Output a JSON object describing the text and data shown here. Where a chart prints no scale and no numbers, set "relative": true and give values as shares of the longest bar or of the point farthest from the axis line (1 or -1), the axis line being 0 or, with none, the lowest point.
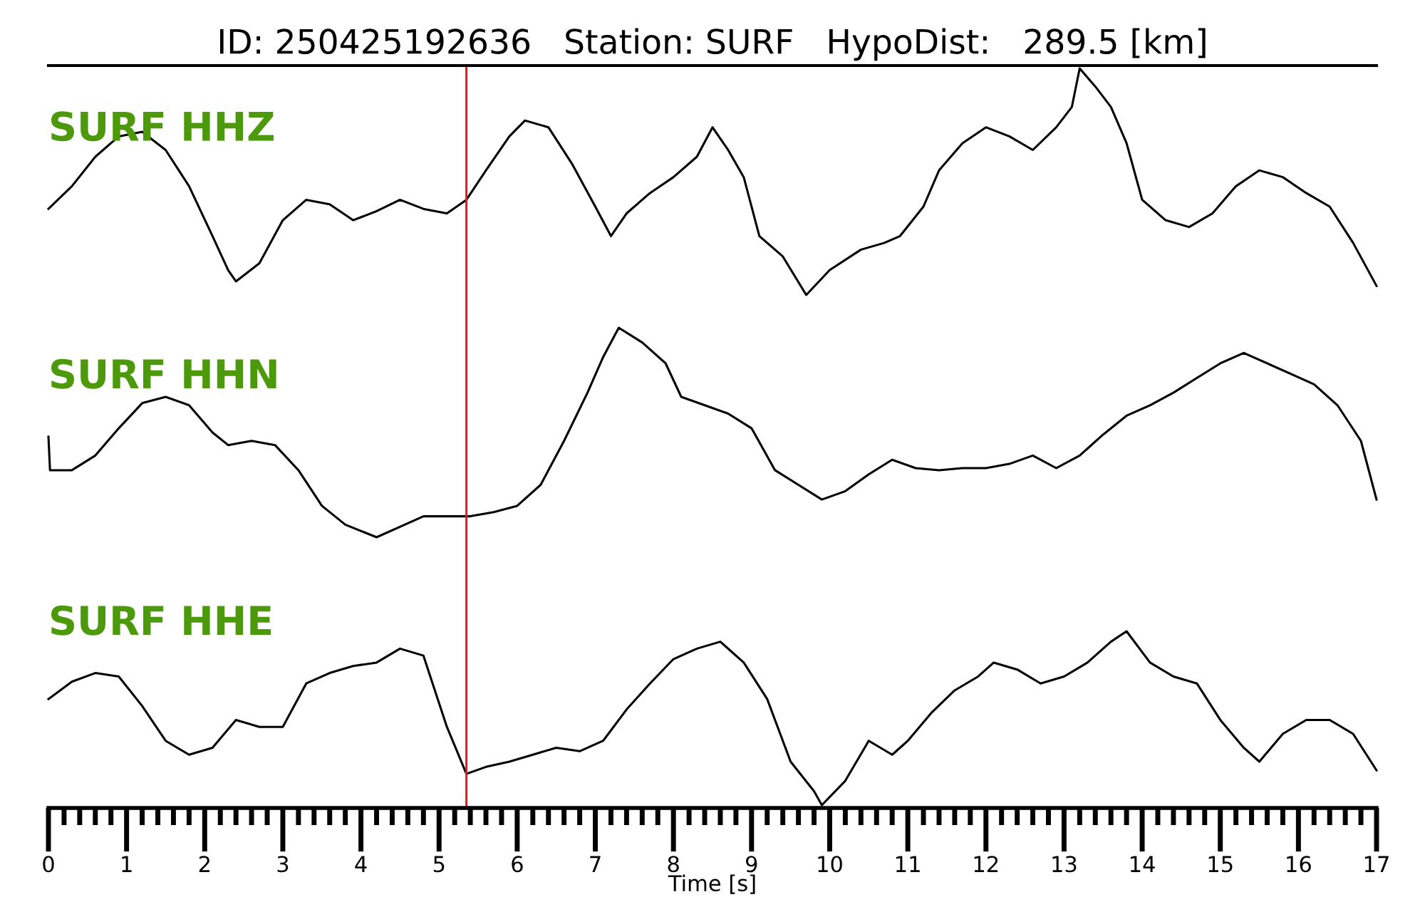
{
  "chart_data": [
    {
      "type": "line",
      "title": "ID: 250425192636   Station: SURF   HypoDist:   289.5 [km]",
      "relative": true,
      "xlim": [
        0,
        17
      ],
      "tick_labels": false,
      "annotations": [
        "SURF HHZ"
      ],
      "ref_lines": [
        {
          "axis": "x",
          "value": 5.35,
          "color": "#e41a1c"
        }
      ],
      "series": [
        {
          "color": "#000000",
          "x": [
            0,
            0.3,
            0.6,
            0.9,
            1.2,
            1.5,
            1.8,
            2.1,
            2.3,
            2.4,
            2.7,
            3.0,
            3.3,
            3.6,
            3.9,
            4.2,
            4.5,
            4.8,
            5.1,
            5.35,
            5.6,
            5.9,
            6.1,
            6.4,
            6.7,
            7.0,
            7.2,
            7.4,
            7.7,
            8.0,
            8.3,
            8.5,
            8.7,
            8.9,
            9.1,
            9.4,
            9.7,
            10.0,
            10.4,
            10.7,
            10.9,
            11.2,
            11.4,
            11.7,
            12.0,
            12.3,
            12.6,
            12.9,
            13.1,
            13.2,
            13.4,
            13.6,
            13.8,
            14.0,
            14.3,
            14.6,
            14.9,
            15.2,
            15.5,
            15.8,
            16.1,
            16.4,
            16.7,
            17.0
          ],
          "values": [
            0.38,
            0.48,
            0.61,
            0.7,
            0.72,
            0.64,
            0.48,
            0.26,
            0.11,
            0.06,
            0.14,
            0.33,
            0.42,
            0.4,
            0.33,
            0.37,
            0.42,
            0.38,
            0.36,
            0.42,
            0.55,
            0.7,
            0.77,
            0.74,
            0.58,
            0.39,
            0.26,
            0.36,
            0.45,
            0.52,
            0.61,
            0.74,
            0.64,
            0.52,
            0.26,
            0.17,
            0,
            0.11,
            0.2,
            0.23,
            0.26,
            0.39,
            0.55,
            0.67,
            0.74,
            0.7,
            0.64,
            0.74,
            0.83,
            1,
            0.92,
            0.83,
            0.67,
            0.42,
            0.33,
            0.3,
            0.36,
            0.48,
            0.55,
            0.52,
            0.45,
            0.39,
            0.23,
            0.04
          ]
        }
      ]
    },
    {
      "type": "line",
      "relative": true,
      "xlim": [
        0,
        17
      ],
      "tick_labels": false,
      "annotations": [
        "SURF HHN"
      ],
      "ref_lines": [
        {
          "axis": "x",
          "value": 5.35,
          "color": "#e41a1c"
        }
      ],
      "series": [
        {
          "color": "#000000",
          "x": [
            0,
            0.02,
            0.3,
            0.6,
            0.9,
            1.2,
            1.5,
            1.8,
            2.1,
            2.3,
            2.6,
            2.9,
            3.2,
            3.5,
            3.8,
            4.2,
            4.5,
            4.8,
            5.1,
            5.4,
            5.7,
            6.0,
            6.3,
            6.6,
            6.9,
            7.1,
            7.3,
            7.6,
            7.9,
            8.1,
            8.4,
            8.7,
            9.0,
            9.3,
            9.6,
            9.9,
            10.2,
            10.5,
            10.8,
            11.1,
            11.4,
            11.7,
            12.0,
            12.3,
            12.6,
            12.9,
            13.2,
            13.5,
            13.8,
            14.1,
            14.4,
            14.7,
            15.0,
            15.3,
            15.6,
            15.9,
            16.2,
            16.5,
            16.8,
            17.0
          ],
          "values": [
            0.48,
            0.32,
            0.32,
            0.39,
            0.52,
            0.64,
            0.67,
            0.63,
            0.5,
            0.44,
            0.46,
            0.44,
            0.32,
            0.15,
            0.06,
            0,
            0.05,
            0.1,
            0.1,
            0.1,
            0.12,
            0.15,
            0.25,
            0.46,
            0.69,
            0.86,
            1,
            0.93,
            0.83,
            0.67,
            0.63,
            0.59,
            0.52,
            0.32,
            0.25,
            0.18,
            0.22,
            0.3,
            0.37,
            0.33,
            0.32,
            0.33,
            0.33,
            0.35,
            0.39,
            0.33,
            0.39,
            0.49,
            0.58,
            0.63,
            0.69,
            0.76,
            0.83,
            0.88,
            0.83,
            0.78,
            0.73,
            0.63,
            0.46,
            0.18
          ]
        }
      ]
    },
    {
      "type": "line",
      "relative": true,
      "xlim": [
        0,
        17
      ],
      "tick_labels": "x",
      "xlabel": "Time [s]",
      "annotations": [
        "SURF HHE"
      ],
      "ref_lines": [
        {
          "axis": "x",
          "value": 5.35,
          "color": "#e41a1c"
        }
      ],
      "xticks": [
        0,
        {
          "value": 0.2,
          "label": null
        },
        {
          "value": 0.4,
          "label": null
        },
        {
          "value": 0.6,
          "label": null
        },
        {
          "value": 0.8,
          "label": null
        },
        1,
        {
          "value": 1.2,
          "label": null
        },
        {
          "value": 1.4,
          "label": null
        },
        {
          "value": 1.6,
          "label": null
        },
        {
          "value": 1.8,
          "label": null
        },
        2,
        {
          "value": 2.2,
          "label": null
        },
        {
          "value": 2.4,
          "label": null
        },
        {
          "value": 2.6,
          "label": null
        },
        {
          "value": 2.8,
          "label": null
        },
        3,
        {
          "value": 3.2,
          "label": null
        },
        {
          "value": 3.4,
          "label": null
        },
        {
          "value": 3.6,
          "label": null
        },
        {
          "value": 3.8,
          "label": null
        },
        4,
        {
          "value": 4.2,
          "label": null
        },
        {
          "value": 4.4,
          "label": null
        },
        {
          "value": 4.6,
          "label": null
        },
        {
          "value": 4.8,
          "label": null
        },
        5,
        {
          "value": 5.2,
          "label": null
        },
        {
          "value": 5.4,
          "label": null
        },
        {
          "value": 5.6,
          "label": null
        },
        {
          "value": 5.8,
          "label": null
        },
        6,
        {
          "value": 6.2,
          "label": null
        },
        {
          "value": 6.4,
          "label": null
        },
        {
          "value": 6.6,
          "label": null
        },
        {
          "value": 6.8,
          "label": null
        },
        7,
        {
          "value": 7.2,
          "label": null
        },
        {
          "value": 7.4,
          "label": null
        },
        {
          "value": 7.6,
          "label": null
        },
        {
          "value": 7.8,
          "label": null
        },
        8,
        {
          "value": 8.2,
          "label": null
        },
        {
          "value": 8.4,
          "label": null
        },
        {
          "value": 8.6,
          "label": null
        },
        {
          "value": 8.8,
          "label": null
        },
        9,
        {
          "value": 9.2,
          "label": null
        },
        {
          "value": 9.4,
          "label": null
        },
        {
          "value": 9.6,
          "label": null
        },
        {
          "value": 9.8,
          "label": null
        },
        10,
        {
          "value": 10.2,
          "label": null
        },
        {
          "value": 10.4,
          "label": null
        },
        {
          "value": 10.6,
          "label": null
        },
        {
          "value": 10.8,
          "label": null
        },
        11,
        {
          "value": 11.2,
          "label": null
        },
        {
          "value": 11.4,
          "label": null
        },
        {
          "value": 11.6,
          "label": null
        },
        {
          "value": 11.8,
          "label": null
        },
        12,
        {
          "value": 12.2,
          "label": null
        },
        {
          "value": 12.4,
          "label": null
        },
        {
          "value": 12.6,
          "label": null
        },
        {
          "value": 12.8,
          "label": null
        },
        13,
        {
          "value": 13.2,
          "label": null
        },
        {
          "value": 13.4,
          "label": null
        },
        {
          "value": 13.6,
          "label": null
        },
        {
          "value": 13.8,
          "label": null
        },
        14,
        {
          "value": 14.2,
          "label": null
        },
        {
          "value": 14.4,
          "label": null
        },
        {
          "value": 14.6,
          "label": null
        },
        {
          "value": 14.8,
          "label": null
        },
        15,
        {
          "value": 15.2,
          "label": null
        },
        {
          "value": 15.4,
          "label": null
        },
        {
          "value": 15.6,
          "label": null
        },
        {
          "value": 15.8,
          "label": null
        },
        16,
        {
          "value": 16.2,
          "label": null
        },
        {
          "value": 16.4,
          "label": null
        },
        {
          "value": 16.6,
          "label": null
        },
        {
          "value": 16.8,
          "label": null
        },
        17
      ],
      "series": [
        {
          "color": "#000000",
          "x": [
            0,
            0.3,
            0.6,
            0.9,
            1.2,
            1.5,
            1.8,
            2.1,
            2.4,
            2.7,
            3.0,
            3.3,
            3.6,
            3.9,
            4.2,
            4.5,
            4.8,
            5.1,
            5.35,
            5.6,
            5.9,
            6.2,
            6.5,
            6.8,
            7.1,
            7.4,
            7.7,
            8.0,
            8.3,
            8.6,
            8.9,
            9.2,
            9.5,
            9.8,
            9.9,
            10.2,
            10.5,
            10.8,
            11.0,
            11.3,
            11.6,
            11.9,
            12.1,
            12.4,
            12.7,
            13.0,
            13.3,
            13.6,
            13.8,
            14.1,
            14.4,
            14.7,
            15.0,
            15.3,
            15.5,
            15.8,
            16.1,
            16.4,
            16.7,
            17.0
          ],
          "values": [
            0.61,
            0.71,
            0.76,
            0.74,
            0.57,
            0.37,
            0.29,
            0.33,
            0.49,
            0.45,
            0.45,
            0.7,
            0.76,
            0.8,
            0.82,
            0.9,
            0.86,
            0.45,
            0.18,
            0.22,
            0.25,
            0.29,
            0.33,
            0.31,
            0.37,
            0.55,
            0.7,
            0.84,
            0.9,
            0.94,
            0.82,
            0.61,
            0.25,
            0.08,
            0,
            0.14,
            0.37,
            0.29,
            0.37,
            0.53,
            0.66,
            0.74,
            0.82,
            0.78,
            0.7,
            0.74,
            0.82,
            0.94,
            1,
            0.82,
            0.74,
            0.7,
            0.49,
            0.33,
            0.25,
            0.41,
            0.49,
            0.49,
            0.41,
            0.2
          ]
        }
      ]
    }
  ]
}
